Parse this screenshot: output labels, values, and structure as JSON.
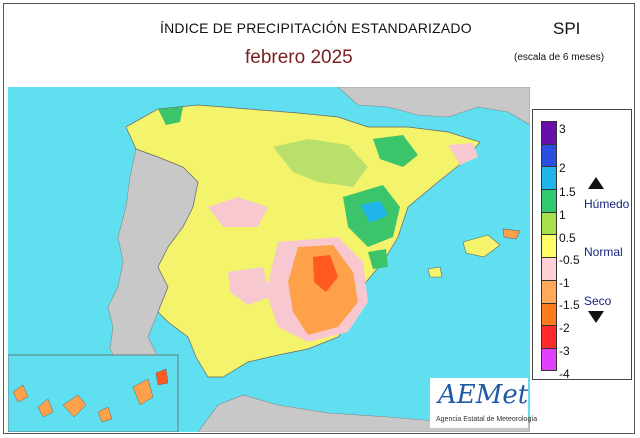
{
  "header": {
    "title": "ÍNDICE DE PRECIPITACIÓN ESTANDARIZADO",
    "period": "febrero  2025",
    "index": "SPI",
    "scale": "(escala de 6 meses)"
  },
  "legend": {
    "ticks": [
      "3",
      "2",
      "1.5",
      "1",
      "0.5",
      "-0.5",
      "-1",
      "-1.5",
      "-2",
      "-3",
      "-4"
    ],
    "colors": [
      "#6a0dad",
      "#2a4ee0",
      "#1fb4ea",
      "#32c86e",
      "#a6e04b",
      "#ffff66",
      "#ffd1d6",
      "#ffaa5a",
      "#ff7a1f",
      "#ff2a2a",
      "#e040fb"
    ],
    "wet_label": "Húmedo",
    "normal_label": "Normal",
    "dry_label": "Seco"
  },
  "map_colors": {
    "sea": "#5fdff0",
    "land_outside": "#c8c8c8",
    "normal": "#f4f46c",
    "humid_light": "#b9e06a",
    "humid": "#3cc46a",
    "very_humid": "#1fb4ea",
    "dry_light": "#f7c8d0",
    "dry": "#ffa04a",
    "very_dry": "#ff5a1f"
  },
  "logo": {
    "name": "AEMet",
    "tagline": "Agencia Estatal de Meteorología"
  }
}
